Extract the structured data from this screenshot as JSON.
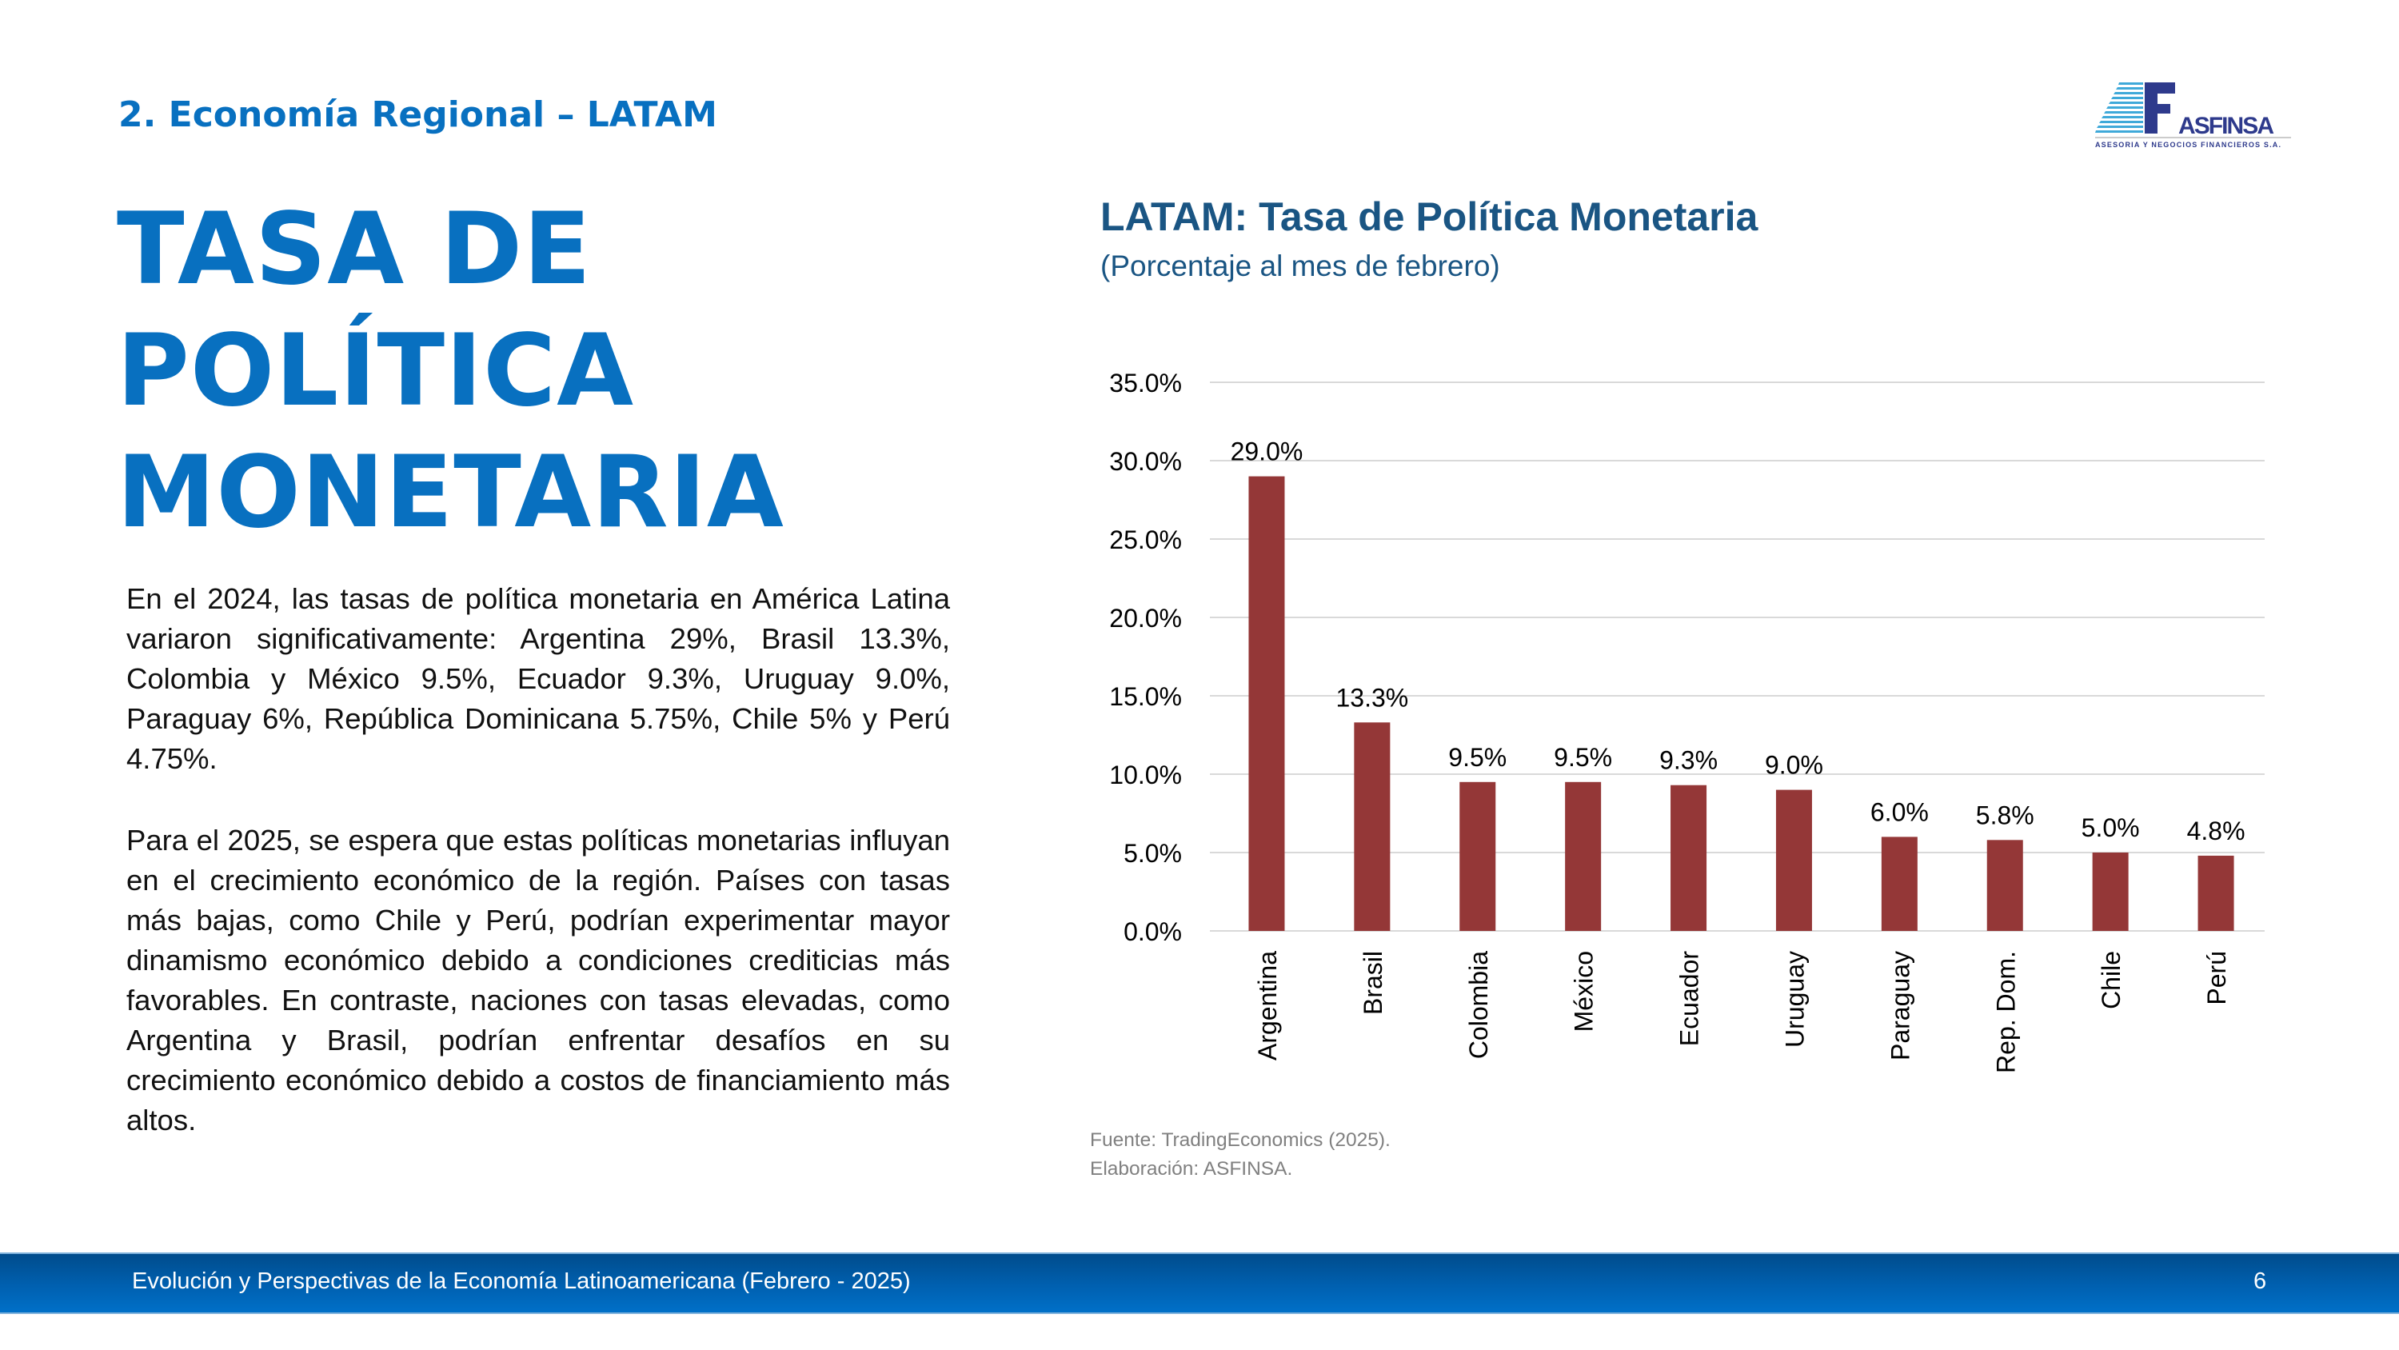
{
  "header": {
    "section_label": "2. Economía Regional – LATAM",
    "title_lines": [
      "TASA DE",
      "POLÍTICA",
      "MONETARIA"
    ]
  },
  "logo": {
    "mark": "AF",
    "brand": "ASFINSA",
    "tagline": "ASESORIA Y NEGOCIOS FINANCIEROS S.A.",
    "colors": {
      "light_blue": "#3fa9d9",
      "navy": "#2e3a8c"
    }
  },
  "body": {
    "paragraph_1": "En el 2024, las tasas de política monetaria en América Latina variaron significativamente: Argentina 29%, Brasil 13.3%, Colombia y México 9.5%, Ecuador 9.3%, Uruguay 9.0%, Paraguay 6%, República Dominicana 5.75%, Chile 5% y Perú 4.75%.",
    "paragraph_2": "Para el 2025, se espera que estas políticas monetarias influyan en el crecimiento económico de la región. Países con tasas más bajas, como Chile y Perú, podrían experimentar mayor dinamismo económico debido a condiciones crediticias más favorables. En contraste, naciones con tasas elevadas, como Argentina y Brasil, podrían enfrentar desafíos en su crecimiento económico debido a costos de financiamiento más altos."
  },
  "chart_data": {
    "type": "bar",
    "title": "LATAM: Tasa de Política Monetaria",
    "subtitle": "(Porcentaje al mes de febrero)",
    "xlabel": "",
    "ylabel": "",
    "categories": [
      "Argentina",
      "Brasil",
      "Colombia",
      "México",
      "Ecuador",
      "Uruguay",
      "Paraguay",
      "Rep. Dom.",
      "Chile",
      "Perú"
    ],
    "values": [
      29.0,
      13.3,
      9.5,
      9.5,
      9.3,
      9.0,
      6.0,
      5.8,
      5.0,
      4.8
    ],
    "data_labels": [
      "29.0%",
      "13.3%",
      "9.5%",
      "9.5%",
      "9.3%",
      "9.0%",
      "6.0%",
      "5.8%",
      "5.0%",
      "4.8%"
    ],
    "ylim": [
      0,
      35
    ],
    "yticks": [
      0,
      5,
      10,
      15,
      20,
      25,
      30,
      35
    ],
    "ytick_labels": [
      "0.0%",
      "5.0%",
      "10.0%",
      "15.0%",
      "20.0%",
      "25.0%",
      "30.0%",
      "35.0%"
    ],
    "grid": true,
    "legend": "none",
    "bar_color": "#943737",
    "grid_color": "#d9d9d9"
  },
  "source": {
    "line_1": "Fuente: TradingEconomics (2025).",
    "line_2": "Elaboración: ASFINSA."
  },
  "footer": {
    "text": "Evolución y Perspectivas de la Economía Latinoamericana (Febrero - 2025)",
    "page_number": "6"
  }
}
